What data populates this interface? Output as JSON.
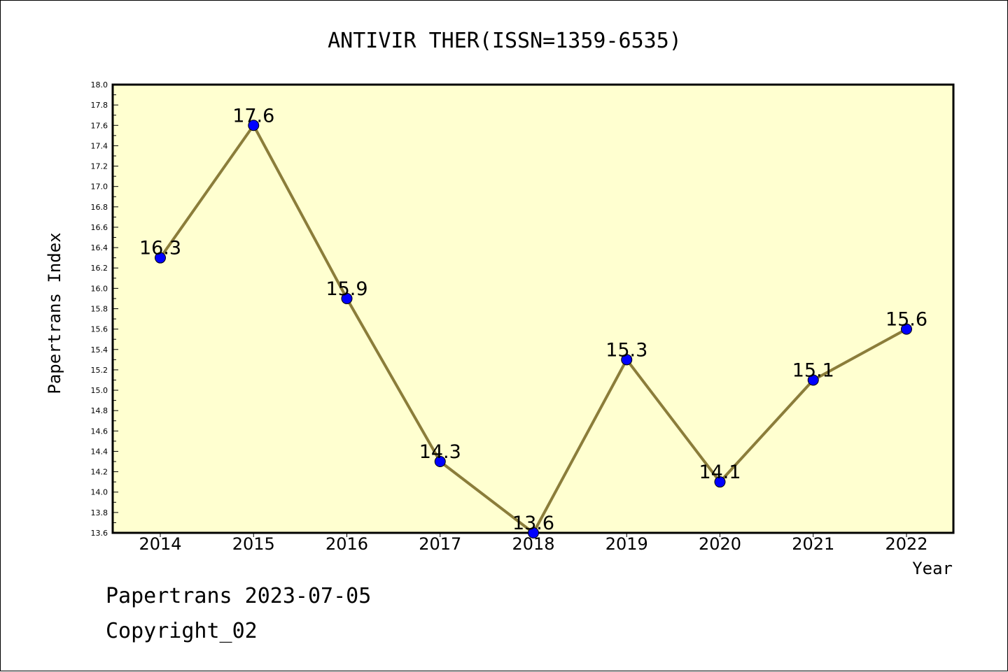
{
  "chart_data": {
    "type": "line",
    "title": "ANTIVIR THER(ISSN=1359-6535)",
    "xlabel": "Year",
    "ylabel": "Papertrans Index",
    "categories": [
      "2014",
      "2015",
      "2016",
      "2017",
      "2018",
      "2019",
      "2020",
      "2021",
      "2022"
    ],
    "series": [
      {
        "values": [
          16.3,
          17.6,
          15.9,
          14.3,
          13.6,
          15.3,
          14.1,
          15.1,
          15.6
        ],
        "data_labels": [
          "16.3",
          "17.6",
          "15.9",
          "14.3",
          "13.6",
          "15.3",
          "14.1",
          "15.1",
          "15.6"
        ]
      }
    ],
    "ylim": [
      13.6,
      18.0
    ],
    "yticks": [
      "13.6",
      "13.8",
      "14.0",
      "14.2",
      "14.4",
      "14.6",
      "14.8",
      "15.0",
      "15.2",
      "15.4",
      "15.6",
      "15.8",
      "16.0",
      "16.2",
      "16.4",
      "16.6",
      "16.8",
      "17.0",
      "17.2",
      "17.4",
      "17.6",
      "17.8",
      "18.0"
    ],
    "grid": false,
    "legend": "none",
    "colors": {
      "plot_background": "#ffffd0",
      "line": "#8b7d3a",
      "marker_fill": "#0000ff",
      "marker_edge": "#000000"
    }
  },
  "footer": {
    "date_line": "Papertrans 2023-07-05",
    "copyright": "Copyright_02"
  }
}
